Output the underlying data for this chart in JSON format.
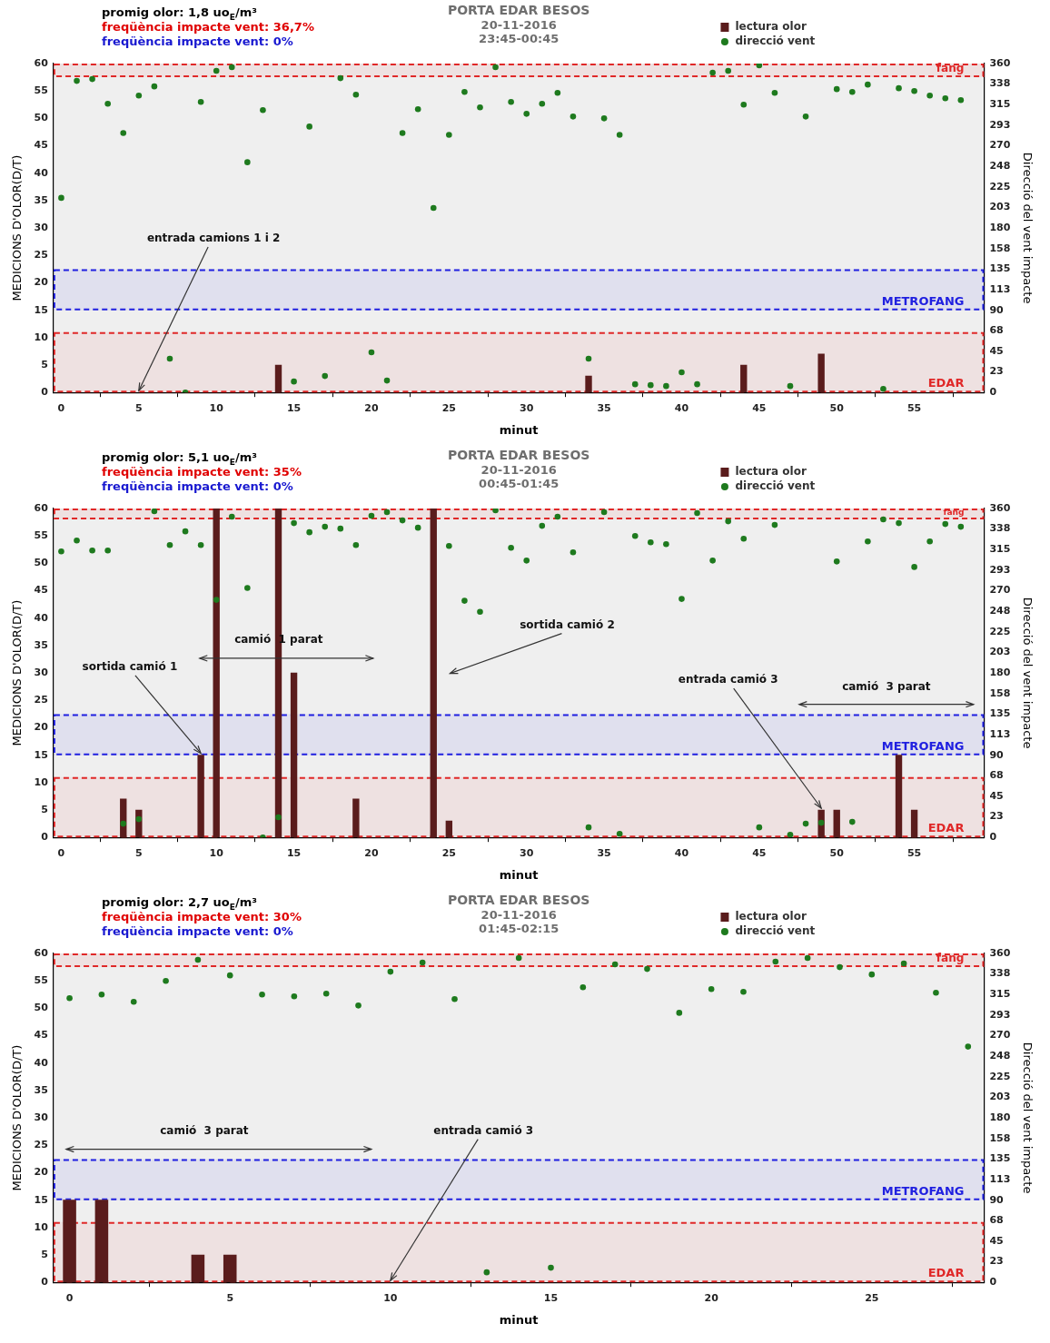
{
  "chart_data": [
    {
      "type": "bar",
      "title": "PORTA EDAR BESOS",
      "subtitle": "20-11-2016\n23:45-00:45",
      "xlabel": "minut",
      "ylabel": "MEDICIONS D'OLOR(D/T)",
      "y2label": "Direcció del vent impacte",
      "xlim": [
        -0.5,
        59.5
      ],
      "xticks": [
        0,
        5,
        10,
        15,
        20,
        25,
        30,
        35,
        40,
        45,
        50,
        55
      ],
      "ylim": [
        0,
        60
      ],
      "yticks": [
        0,
        5,
        10,
        15,
        20,
        25,
        30,
        35,
        40,
        45,
        50,
        55,
        60
      ],
      "y2lim": [
        0,
        360
      ],
      "y2ticks": [
        0,
        {
          "value": 22.5,
          "label": "23"
        },
        45,
        {
          "value": 67.5,
          "label": "68"
        },
        90,
        {
          "value": 112.5,
          "label": "113"
        },
        135,
        {
          "value": 157.5,
          "label": "158"
        },
        180,
        {
          "value": 202.5,
          "label": "203"
        },
        225,
        {
          "value": 247.5,
          "label": "248"
        },
        270,
        {
          "value": 292.5,
          "label": "293"
        },
        315,
        {
          "value": 337.5,
          "label": "338"
        },
        360
      ],
      "legend": "top right",
      "marker": "circle",
      "annotations": [
        "promig olor: 1,8 uo$_{E}$/m³",
        "freqüència impacte vent: 36,7%",
        "freqüència impacte vent: 0%",
        {
          "text": "entrada camions 1 i 2",
          "x": 5,
          "y": 0
        }
      ],
      "bands": [
        {
          "axis": "y",
          "from": 57.5,
          "to": 60,
          "label": "fang",
          "color": "#e02828"
        },
        {
          "axis": "y",
          "from": 15,
          "to": 22.5,
          "label": "METROFANG",
          "color": "#2020e0"
        },
        {
          "axis": "y",
          "from": 0,
          "to": 11,
          "label": "EDAR",
          "color": "#e02828"
        }
      ],
      "series": [
        {
          "name": "lectura olor",
          "color": "#5a1c1c",
          "x": [
            14,
            34,
            44,
            49
          ],
          "values": [
            5,
            3,
            5,
            7
          ]
        },
        {
          "name": "direcció vent",
          "type": "scatter",
          "axis": "y2",
          "color": "#1e7a1e",
          "x": [
            0,
            1,
            2,
            3,
            4,
            5,
            6,
            7,
            8,
            9,
            10,
            11,
            12,
            13,
            15,
            16,
            17,
            18,
            19,
            20,
            21,
            22,
            23,
            24,
            25,
            26,
            27,
            28,
            29,
            30,
            31,
            32,
            33,
            34,
            35,
            36,
            37,
            38,
            39,
            40,
            41,
            42,
            43,
            44,
            45,
            46,
            47,
            48,
            50,
            51,
            52,
            53,
            54,
            55,
            56,
            57,
            58
          ],
          "values": [
            213,
            341,
            343,
            316,
            284,
            325,
            335,
            37,
            0,
            318,
            352,
            356,
            252,
            309,
            12,
            291,
            18,
            344,
            326,
            44,
            13,
            284,
            310,
            202,
            282,
            329,
            312,
            356,
            318,
            305,
            316,
            328,
            302,
            37,
            300,
            282,
            9,
            8,
            7,
            22,
            9,
            350,
            352,
            315,
            358,
            328,
            7,
            302,
            332,
            329,
            337,
            4,
            333,
            330,
            325,
            322,
            320
          ]
        }
      ]
    },
    {
      "type": "bar",
      "title": "PORTA EDAR BESOS",
      "subtitle": "20-11-2016\n00:45-01:45",
      "xlabel": "minut",
      "ylabel": "MEDICIONS D'OLOR(D/T)",
      "y2label": "Direcció del vent impacte",
      "xlim": [
        -0.5,
        59.5
      ],
      "xticks": [
        0,
        5,
        10,
        15,
        20,
        25,
        30,
        35,
        40,
        45,
        50,
        55
      ],
      "ylim": [
        0,
        60
      ],
      "yticks": [
        0,
        5,
        10,
        15,
        20,
        25,
        30,
        35,
        40,
        45,
        50,
        55,
        60
      ],
      "y2lim": [
        0,
        360
      ],
      "y2ticks": [
        0,
        {
          "value": 22.5,
          "label": "23"
        },
        45,
        {
          "value": 67.5,
          "label": "68"
        },
        90,
        {
          "value": 112.5,
          "label": "113"
        },
        135,
        {
          "value": 157.5,
          "label": "158"
        },
        180,
        {
          "value": 202.5,
          "label": "203"
        },
        225,
        {
          "value": 247.5,
          "label": "248"
        },
        270,
        {
          "value": 292.5,
          "label": "293"
        },
        315,
        {
          "value": 337.5,
          "label": "338"
        },
        360
      ],
      "legend": "top right",
      "marker": "circle",
      "annotations": [
        "promig olor: 5,1 uo$_{E}$/m³",
        "freqüència impacte vent: 35%",
        "freqüència impacte vent: 0%",
        "camió  1 parat",
        {
          "text": "sortida camió 1",
          "x": 9,
          "y": 15
        },
        "sortida camió 2",
        {
          "text": "entrada camió 3",
          "x": 49,
          "y": 5
        },
        "camió  3 parat"
      ],
      "bands": [
        {
          "axis": "y",
          "from": 58,
          "to": 60,
          "label": "fang",
          "color": "#e02828"
        },
        {
          "axis": "y",
          "from": 15,
          "to": 22.5,
          "label": "METROFANG",
          "color": "#2020e0"
        },
        {
          "axis": "y",
          "from": 0,
          "to": 11,
          "label": "EDAR",
          "color": "#e02828"
        }
      ],
      "series": [
        {
          "name": "lectura olor",
          "color": "#5a1c1c",
          "x": [
            4,
            5,
            9,
            10,
            14,
            15,
            19,
            24,
            25,
            49,
            50,
            54,
            55
          ],
          "values": [
            7,
            5,
            15,
            60,
            60,
            30,
            7,
            60,
            3,
            5,
            5,
            15,
            5
          ]
        },
        {
          "name": "direcció vent",
          "type": "scatter",
          "axis": "y2",
          "color": "#1e7a1e",
          "x": [
            0,
            1,
            2,
            3,
            4,
            5,
            6,
            7,
            8,
            9,
            10,
            11,
            12,
            13,
            14,
            15,
            16,
            17,
            18,
            19,
            20,
            21,
            22,
            23,
            25,
            26,
            27,
            28,
            29,
            30,
            31,
            32,
            33,
            34,
            35,
            36,
            37,
            38,
            39,
            40,
            41,
            42,
            43,
            44,
            45,
            46,
            47,
            48,
            49,
            50,
            51,
            52,
            53,
            54,
            55,
            56,
            57,
            58
          ],
          "values": [
            313,
            325,
            314,
            314,
            15,
            20,
            357,
            320,
            335,
            320,
            260,
            351,
            273,
            0,
            22,
            344,
            334,
            340,
            338,
            320,
            352,
            356,
            347,
            339,
            319,
            259,
            247,
            358,
            317,
            303,
            341,
            351,
            312,
            11,
            356,
            4,
            330,
            323,
            321,
            261,
            355,
            303,
            346,
            327,
            11,
            342,
            3,
            15,
            16,
            302,
            17,
            324,
            348,
            344,
            296,
            324,
            343,
            340
          ]
        }
      ]
    },
    {
      "type": "bar",
      "title": "PORTA EDAR BESOS",
      "subtitle": "20-11-2016\n01:45-02:15",
      "xlabel": "minut",
      "ylabel": "MEDICIONS D'OLOR(D/T)",
      "y2label": "Direcció del vent impacte",
      "xlim": [
        -0.5,
        28.5
      ],
      "xticks": [
        0,
        5,
        10,
        15,
        20,
        25
      ],
      "ylim": [
        0,
        60
      ],
      "yticks": [
        0,
        5,
        10,
        15,
        20,
        25,
        30,
        35,
        40,
        45,
        50,
        55,
        60
      ],
      "y2lim": [
        0,
        360
      ],
      "y2ticks": [
        0,
        {
          "value": 22.5,
          "label": "23"
        },
        45,
        {
          "value": 67.5,
          "label": "68"
        },
        90,
        {
          "value": 112.5,
          "label": "113"
        },
        135,
        {
          "value": 157.5,
          "label": "158"
        },
        180,
        {
          "value": 202.5,
          "label": "203"
        },
        225,
        {
          "value": 247.5,
          "label": "248"
        },
        270,
        {
          "value": 292.5,
          "label": "293"
        },
        315,
        {
          "value": 337.5,
          "label": "338"
        },
        360
      ],
      "legend": "top right",
      "marker": "circle",
      "annotations": [
        "promig olor: 2,7 uo$_{E}$/m³",
        "freqüència impacte vent: 30%",
        "freqüència impacte vent: 0%",
        "camió  3 parat",
        {
          "text": "entrada camió 3",
          "x": 10,
          "y": 0
        }
      ],
      "bands": [
        {
          "axis": "y",
          "from": 57.5,
          "to": 60,
          "label": "fang",
          "color": "#e02828"
        },
        {
          "axis": "y",
          "from": 15,
          "to": 22.5,
          "label": "METROFANG",
          "color": "#2020e0"
        },
        {
          "axis": "y",
          "from": 0,
          "to": 11,
          "label": "EDAR",
          "color": "#e02828"
        }
      ],
      "series": [
        {
          "name": "lectura olor",
          "color": "#5a1c1c",
          "x": [
            0,
            1,
            4,
            5
          ],
          "values": [
            15,
            15,
            5,
            5
          ]
        },
        {
          "name": "direcció vent",
          "type": "scatter",
          "axis": "y2",
          "color": "#1e7a1e",
          "x": [
            0,
            1,
            2,
            3,
            4,
            5,
            6,
            7,
            8,
            9,
            10,
            11,
            12,
            13,
            14,
            15,
            16,
            17,
            18,
            19,
            20,
            21,
            22,
            23,
            24,
            25,
            26,
            27,
            28
          ],
          "values": [
            311,
            315,
            307,
            330,
            353,
            336,
            315,
            313,
            316,
            303,
            340,
            350,
            310,
            11,
            355,
            16,
            323,
            348,
            343,
            295,
            321,
            318,
            351,
            355,
            345,
            337,
            349,
            317,
            258
          ]
        }
      ]
    }
  ]
}
